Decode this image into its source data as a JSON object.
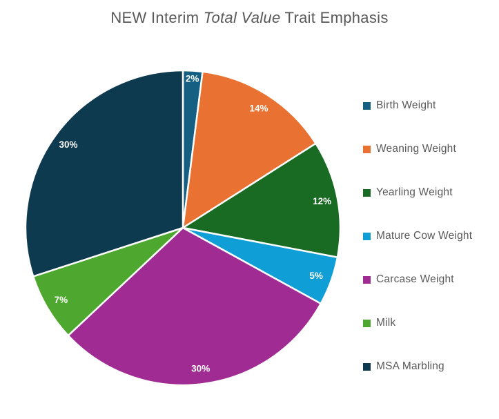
{
  "title": {
    "prefix": "NEW Interim ",
    "italic": "Total Value",
    "suffix": " Trait Emphasis",
    "color": "#595959"
  },
  "chart_data": {
    "type": "pie",
    "title": "NEW Interim Total Value Trait Emphasis",
    "direction": "clockwise",
    "start_angle_deg": 0,
    "data_label_format": "percent",
    "data_label_color": "#FFFFFF",
    "slice_border_color": "#FFFFFF",
    "legend_position": "right",
    "legend_text_color": "#595959",
    "slices": [
      {
        "label": "Birth Weight",
        "value": 2,
        "display": "2%",
        "color": "#156082"
      },
      {
        "label": "Weaning Weight",
        "value": 14,
        "display": "14%",
        "color": "#E97132"
      },
      {
        "label": "Yearling Weight",
        "value": 12,
        "display": "12%",
        "color": "#196B24"
      },
      {
        "label": "Mature Cow Weight",
        "value": 5,
        "display": "5%",
        "color": "#0F9ED5"
      },
      {
        "label": "Carcase Weight",
        "value": 30,
        "display": "30%",
        "color": "#A02B93"
      },
      {
        "label": "Milk",
        "value": 7,
        "display": "7%",
        "color": "#4EA72E"
      },
      {
        "label": "MSA Marbling",
        "value": 30,
        "display": "30%",
        "color": "#0E3A50"
      }
    ]
  }
}
